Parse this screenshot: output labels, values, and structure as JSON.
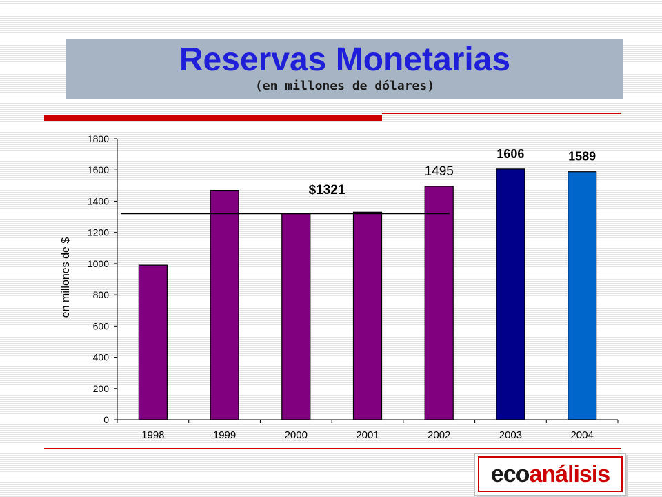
{
  "header": {
    "title": "Reservas Monetarias",
    "subtitle": "(en millones de dólares)"
  },
  "logo": {
    "part1": "eco",
    "part2": "análisis"
  },
  "colors": {
    "title": "#1f1fd9",
    "accent_red": "#cc0000",
    "bar_purple": "#800080",
    "bar_navy": "#00008b",
    "bar_blue": "#0066cc"
  },
  "chart_data": {
    "type": "bar",
    "categories": [
      "1998",
      "1999",
      "2000",
      "2001",
      "2002",
      "2003",
      "2004"
    ],
    "values": [
      990,
      1470,
      1320,
      1330,
      1495,
      1606,
      1589
    ],
    "bar_colors": [
      "#800080",
      "#800080",
      "#800080",
      "#800080",
      "#800080",
      "#00008b",
      "#0066cc"
    ],
    "value_labels": [
      "",
      "",
      "",
      "",
      "1495",
      "1606",
      "1589"
    ],
    "ylabel": "en millones de $",
    "xlabel": "",
    "ylim": [
      0,
      1800
    ],
    "yticks": [
      0,
      200,
      400,
      600,
      800,
      1000,
      1200,
      1400,
      1600,
      1800
    ],
    "grid": false,
    "reference_line": {
      "value": 1321,
      "label": "$1321"
    }
  }
}
